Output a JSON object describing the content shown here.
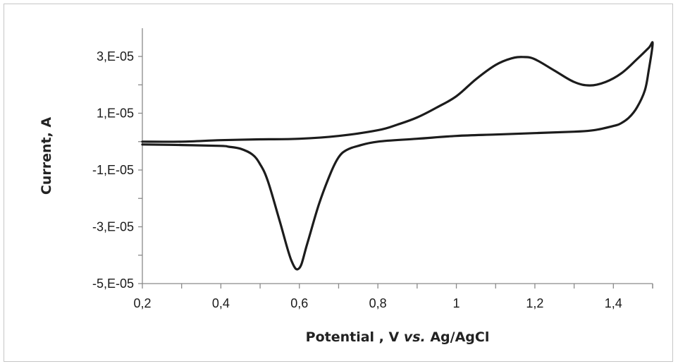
{
  "chart_data": {
    "type": "line",
    "title": "",
    "xlabel_parts": [
      "Potential , V ",
      "vs.",
      " Ag/AgCl"
    ],
    "ylabel": "Current, A",
    "xlim": [
      0.2,
      1.5
    ],
    "ylim": [
      -5e-05,
      4e-05
    ],
    "x_ticks": [
      0.2,
      0.4,
      0.6,
      0.8,
      1.0,
      1.2,
      1.4
    ],
    "x_tick_labels": [
      "0,2",
      "0,4",
      "0,6",
      "0,8",
      "1",
      "1,2",
      "1,4"
    ],
    "y_ticks": [
      3e-05,
      1e-05,
      -1e-05,
      -3e-05,
      -5e-05
    ],
    "y_tick_labels": [
      "3,E-05",
      "1,E-05",
      "-1,E-05",
      "-3,E-05",
      "-5,E-05"
    ],
    "grid": false,
    "legend": "none",
    "series": [
      {
        "x": [
          0.2,
          0.3,
          0.4,
          0.5,
          0.6,
          0.7,
          0.8,
          0.85,
          0.9,
          0.95,
          1.0,
          1.05,
          1.1,
          1.14,
          1.17,
          1.2,
          1.25,
          1.3,
          1.34,
          1.38,
          1.42,
          1.46,
          1.49,
          1.5,
          1.49,
          1.48,
          1.46,
          1.44,
          1.42,
          1.4,
          1.35,
          1.3,
          1.2,
          1.1,
          1.0,
          0.9,
          0.8,
          0.75,
          0.72,
          0.7,
          0.68,
          0.65,
          0.62,
          0.6,
          0.58,
          0.55,
          0.52,
          0.5,
          0.48,
          0.45,
          0.42,
          0.4,
          0.3,
          0.2
        ],
        "y": [
          0.0,
          0.0,
          5e-07,
          8e-07,
          1e-06,
          2e-06,
          4e-06,
          6e-06,
          8.5e-06,
          1.2e-05,
          1.6e-05,
          2.2e-05,
          2.7e-05,
          2.93e-05,
          2.98e-05,
          2.9e-05,
          2.5e-05,
          2.1e-05,
          1.98e-05,
          2.1e-05,
          2.4e-05,
          2.9e-05,
          3.3e-05,
          3.45e-05,
          2.5e-05,
          1.8e-05,
          1.2e-05,
          8.5e-06,
          6.5e-06,
          5.5e-06,
          4e-06,
          3.5e-06,
          3e-06,
          2.5e-06,
          2e-06,
          1e-06,
          0.0,
          -1.5e-06,
          -3e-06,
          -5.5e-06,
          -1.1e-05,
          -2.2e-05,
          -3.6e-05,
          -4.45e-05,
          -4.2e-05,
          -2.8e-05,
          -1.4e-05,
          -8e-06,
          -4.5e-06,
          -2.5e-06,
          -1.8e-06,
          -1.5e-06,
          -1.2e-06,
          -1e-06
        ]
      }
    ]
  }
}
